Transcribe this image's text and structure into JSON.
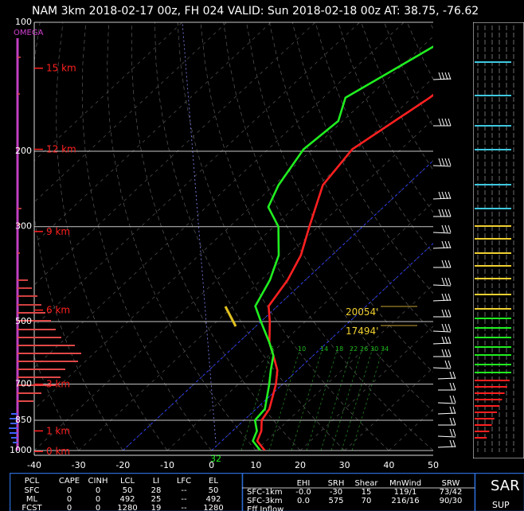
{
  "title": "NAM 3km 2018-02-17 00z, FH 024   VALID: Sun 2018-02-18 00z   AT: 38.75, -76.62",
  "omega_label": "OMEGA",
  "chart_data": {
    "type": "line",
    "title": "NAM 3km 2018-02-17 00z, FH 024   VALID: Sun 2018-02-18 00z   AT: 38.75, -76.62",
    "xlabel": "",
    "ylabel": "",
    "xlim": [
      -40,
      50
    ],
    "ylim": [
      1000,
      100
    ],
    "x_ticks": [
      -40,
      -30,
      -20,
      -10,
      0,
      10,
      20,
      30,
      40,
      50
    ],
    "pressure_labels": [
      {
        "p": 100,
        "text": "100"
      },
      {
        "p": 200,
        "text": "200"
      },
      {
        "p": 300,
        "text": "300"
      },
      {
        "p": 500,
        "text": "500"
      },
      {
        "p": 700,
        "text": "700"
      },
      {
        "p": 850,
        "text": "850"
      },
      {
        "p": 1000,
        "text": "1000"
      }
    ],
    "height_labels": [
      {
        "p": 128,
        "text": "15 km"
      },
      {
        "p": 198,
        "text": "12 km"
      },
      {
        "p": 308,
        "text": "9 km"
      },
      {
        "p": 470,
        "text": "6 km"
      },
      {
        "p": 700,
        "text": "3 km"
      },
      {
        "p": 900,
        "text": "1 km"
      },
      {
        "p": 1005,
        "text": "0 km"
      }
    ],
    "series": [
      {
        "name": "",
        "color": "#ff2020",
        "points": [
          [
            -32,
            100
          ],
          [
            -34,
            125
          ],
          [
            -36,
            150
          ],
          [
            -41,
            198
          ],
          [
            -39,
            240
          ],
          [
            -32,
            300
          ],
          [
            -27,
            350
          ],
          [
            -24,
            400
          ],
          [
            -22,
            460
          ],
          [
            -18,
            500
          ],
          [
            -13,
            560
          ],
          [
            -9,
            600
          ],
          [
            -4.5,
            650
          ],
          [
            -1.5,
            700
          ],
          [
            3,
            800
          ],
          [
            4,
            850
          ],
          [
            6.5,
            900
          ],
          [
            8,
            950
          ],
          [
            12,
            1000
          ]
        ]
      },
      {
        "name": "",
        "color": "#20ee20",
        "points": [
          [
            -44,
            100
          ],
          [
            -50,
            125
          ],
          [
            -55,
            150
          ],
          [
            -51,
            170
          ],
          [
            -52,
            198
          ],
          [
            -49,
            240
          ],
          [
            -46,
            270
          ],
          [
            -39,
            300
          ],
          [
            -32,
            350
          ],
          [
            -28,
            400
          ],
          [
            -25,
            460
          ],
          [
            -20,
            500
          ],
          [
            -13,
            560
          ],
          [
            -9,
            600
          ],
          [
            -6,
            650
          ],
          [
            -3,
            700
          ],
          [
            2,
            800
          ],
          [
            2.5,
            850
          ],
          [
            5.5,
            900
          ],
          [
            7,
            950
          ],
          [
            11,
            1000
          ]
        ]
      }
    ],
    "surface_temp_label": "32",
    "level_markers": [
      {
        "text": "20054'",
        "p": 468
      },
      {
        "text": "17494'",
        "p": 512
      }
    ],
    "mixing_ratio_labels": [
      "6",
      "10",
      "14",
      "18",
      "22",
      "26",
      "30",
      "34"
    ]
  },
  "table": {
    "parcel_headers": [
      "PCL",
      "CAPE",
      "CINH",
      "LCL",
      "LI",
      "LFC",
      "EL"
    ],
    "parcel_rows": [
      [
        "SFC",
        "0",
        "0",
        "50",
        "28",
        "--",
        "50"
      ],
      [
        "ML",
        "0",
        "0",
        "492",
        "25",
        "--",
        "492"
      ],
      [
        "FCST",
        "0",
        "0",
        "1280",
        "19",
        "--",
        "1280"
      ]
    ],
    "shear_headers": [
      "",
      "EHI",
      "SRH",
      "Shear",
      "MnWind",
      "SRW"
    ],
    "shear_rows": [
      [
        "SFC-1km",
        "-0.0",
        "-30",
        "15",
        "119/1",
        "73/42"
      ],
      [
        "SFC-3km",
        "0.0",
        "575",
        "70",
        "216/16",
        "90/30"
      ],
      [
        "Eff Inflow",
        "",
        "",
        "",
        "",
        ""
      ]
    ],
    "sars_label": "SAR",
    "sars_sub": "SUP"
  }
}
